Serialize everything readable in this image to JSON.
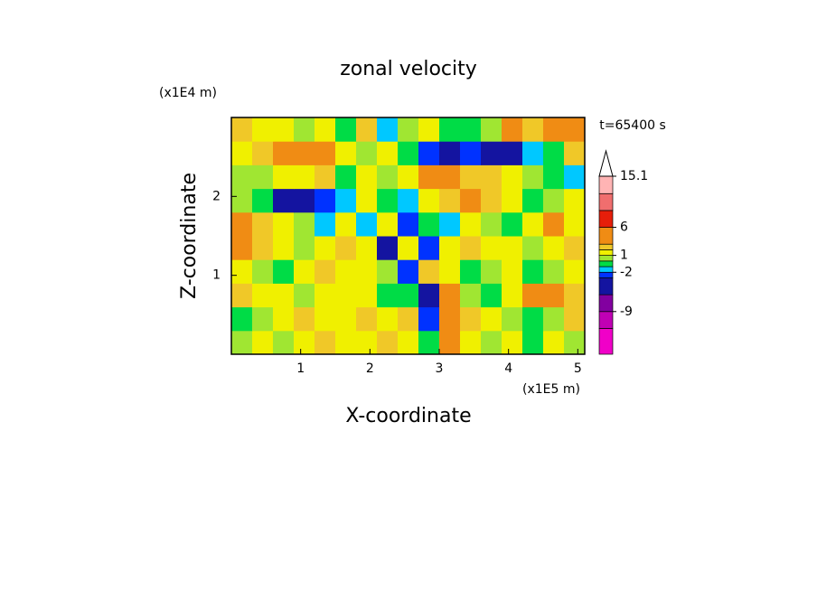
{
  "chart_data": {
    "type": "contour",
    "title": "zonal velocity",
    "x_label": "X-coordinate",
    "y_label": "Z-coordinate",
    "x_unit": "(x1E5 m)",
    "y_unit": "(x1E4 m)",
    "annotation": "t=65400 s",
    "xlim": [
      0,
      5.1
    ],
    "ylim": [
      0,
      3
    ],
    "xticks": [
      1,
      2,
      3,
      4,
      5
    ],
    "yticks": [
      1,
      2
    ],
    "field": {
      "x": [
        0.15,
        0.45,
        0.75,
        1.05,
        1.35,
        1.65,
        1.95,
        2.25,
        2.55,
        2.85,
        3.15,
        3.45,
        3.75,
        4.05,
        4.35,
        4.65,
        4.95
      ],
      "z": [
        0.15,
        0.45,
        0.75,
        1.05,
        1.35,
        1.65,
        1.95,
        2.25,
        2.55,
        2.85
      ],
      "values": [
        [
          0.5,
          1.5,
          0.5,
          1.5,
          2,
          1.5,
          1,
          2,
          1.5,
          -1,
          4,
          1.5,
          0.5,
          1.5,
          -0.5,
          1,
          0.5
        ],
        [
          -1,
          0.5,
          1.5,
          2,
          1,
          1.5,
          2,
          1.5,
          2.5,
          -3,
          5,
          2.5,
          1,
          0.5,
          -0.5,
          0.5,
          2.5
        ],
        [
          2.5,
          1.5,
          1,
          0.5,
          1.5,
          1.5,
          1,
          -0.5,
          -1,
          -4,
          3,
          0.5,
          -0.5,
          1.5,
          4,
          4.5,
          2
        ],
        [
          1,
          0.5,
          -0.5,
          1.5,
          2,
          1,
          1.5,
          0.5,
          -3,
          2,
          1.5,
          -0.5,
          0.5,
          1,
          -0.5,
          0.5,
          1.5
        ],
        [
          3.5,
          2.5,
          1.5,
          0.5,
          1.5,
          2.5,
          1,
          -4,
          1.5,
          -3,
          1.5,
          2,
          1,
          1.5,
          0.5,
          1.5,
          2.5
        ],
        [
          4,
          2,
          1.5,
          0.5,
          -1.5,
          1.5,
          -1.5,
          1,
          -3,
          -0.5,
          -2,
          1.5,
          0.5,
          -0.5,
          1.5,
          3,
          1
        ],
        [
          0.5,
          -1,
          -4,
          -6,
          -3,
          -1.5,
          1,
          -0.5,
          -2,
          1.5,
          2,
          3,
          2.5,
          1.5,
          -0.5,
          0.5,
          1.5
        ],
        [
          0.5,
          0.5,
          1,
          1.5,
          2,
          -0.5,
          1,
          0.5,
          1.5,
          3.5,
          4,
          2.5,
          2,
          1.5,
          0.5,
          -1,
          -1.5
        ],
        [
          1,
          2.5,
          3.5,
          4.5,
          4,
          1.5,
          0.5,
          1,
          -1,
          -3,
          -4,
          -3,
          -6,
          -4,
          -2,
          -1,
          2.5
        ],
        [
          2.5,
          1.5,
          1,
          0.5,
          1.5,
          -0.5,
          2,
          -1.5,
          0.5,
          1,
          -1,
          -0.5,
          0.5,
          3.5,
          2,
          4.5,
          3
        ]
      ]
    },
    "colorbar": {
      "levels": [
        -16.6,
        -12,
        -9,
        -6,
        -3,
        -2,
        -1,
        0,
        1,
        2,
        3,
        6,
        9,
        12,
        15.1
      ],
      "colors": [
        "#f000c8",
        "#c000b4",
        "#8200a0",
        "#1414a0",
        "#0032ff",
        "#00c8ff",
        "#00dc46",
        "#a0e632",
        "#f0f000",
        "#f0c828",
        "#f08c14",
        "#e61e0a",
        "#f06e6e",
        "#ffb4b4"
      ],
      "ticks": [
        15.1,
        6,
        1,
        -2,
        -9
      ],
      "extend_max": true
    }
  }
}
